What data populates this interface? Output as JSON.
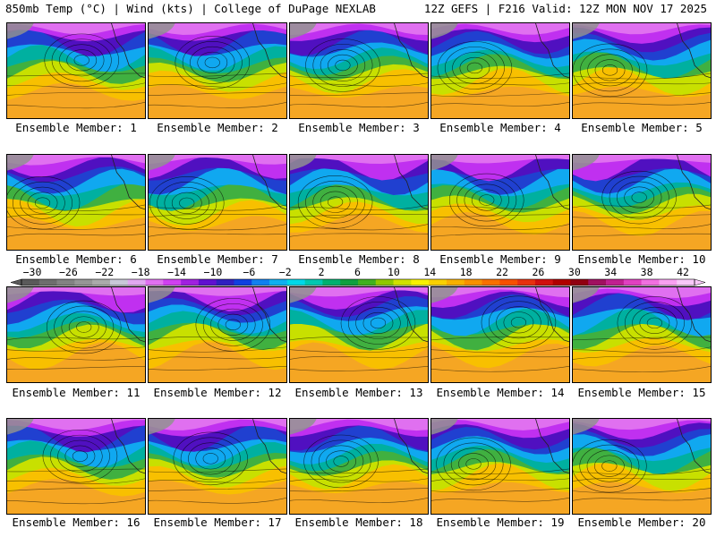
{
  "header": {
    "left": "850mb Temp (°C) | Wind (kts) | College of DuPage NEXLAB",
    "right": "12Z GEFS | F216 Valid: 12Z MON NOV 17 2025"
  },
  "panels": [
    {
      "label": "Ensemble Member: 1"
    },
    {
      "label": "Ensemble Member: 2"
    },
    {
      "label": "Ensemble Member: 3"
    },
    {
      "label": "Ensemble Member: 4"
    },
    {
      "label": "Ensemble Member: 5"
    },
    {
      "label": "Ensemble Member: 6"
    },
    {
      "label": "Ensemble Member: 7"
    },
    {
      "label": "Ensemble Member: 8"
    },
    {
      "label": "Ensemble Member: 9"
    },
    {
      "label": "Ensemble Member: 10"
    },
    {
      "label": "Ensemble Member: 11"
    },
    {
      "label": "Ensemble Member: 12"
    },
    {
      "label": "Ensemble Member: 13"
    },
    {
      "label": "Ensemble Member: 14"
    },
    {
      "label": "Ensemble Member: 15"
    },
    {
      "label": "Ensemble Member: 16"
    },
    {
      "label": "Ensemble Member: 17"
    },
    {
      "label": "Ensemble Member: 18"
    },
    {
      "label": "Ensemble Member: 19"
    },
    {
      "label": "Ensemble Member: 20"
    }
  ],
  "colorbar": {
    "labels": [
      "−30",
      "−26",
      "−22",
      "−18",
      "−14",
      "−10",
      "−6",
      "−2",
      "2",
      "6",
      "10",
      "14",
      "18",
      "22",
      "26",
      "30",
      "34",
      "38",
      "42"
    ],
    "colors": [
      "#5a5a5a",
      "#6e6e6e",
      "#828282",
      "#969696",
      "#aaaaaa",
      "#c8c8d8",
      "#e0a8f0",
      "#e070f0",
      "#d040f0",
      "#a020e0",
      "#6010d0",
      "#3020c0",
      "#1040e0",
      "#1080f0",
      "#10b0f0",
      "#00d8e8",
      "#00c8b0",
      "#00b070",
      "#10a040",
      "#40b020",
      "#90c800",
      "#d0e000",
      "#f8f000",
      "#f8d000",
      "#f8b000",
      "#f89000",
      "#f87000",
      "#f85000",
      "#e83010",
      "#d01010",
      "#b00000",
      "#900010",
      "#a01060",
      "#c02090",
      "#e040c0",
      "#f070e0",
      "#f8a0f0",
      "#f8c8f8"
    ]
  }
}
